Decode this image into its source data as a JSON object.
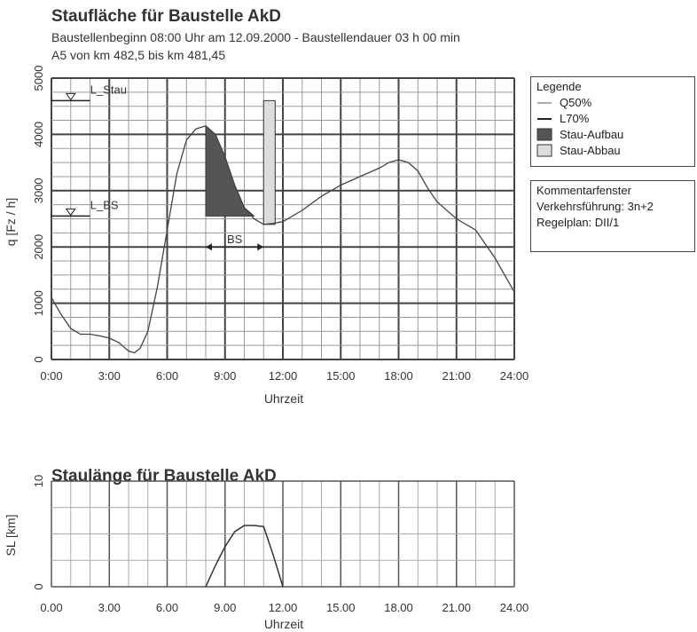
{
  "chart_data": [
    {
      "type": "line",
      "title": "Staufläche für Baustelle AkD",
      "subtitle1": "Baustellenbeginn 08:00 Uhr am 12.09.2000 - Baustellendauer 03 h  00 min",
      "subtitle2": "A5 von km 482,5 bis km 481,45",
      "xlabel": "Uhrzeit",
      "ylabel": "q [Fz / h]",
      "xlim": [
        0,
        24
      ],
      "ylim": [
        0,
        5000
      ],
      "x_ticks": [
        "0:00",
        "3:00",
        "6:00",
        "9:00",
        "12:00",
        "15:00",
        "18:00",
        "21:00",
        "24:00"
      ],
      "y_ticks": [
        "0",
        "1000",
        "2000",
        "3000",
        "4000",
        "5000"
      ],
      "grid": true,
      "series": [
        {
          "name": "Q50%",
          "x": [
            0,
            0.5,
            1,
            1.5,
            2,
            2.5,
            3,
            3.5,
            4,
            4.3,
            4.6,
            5,
            5.5,
            6,
            6.5,
            7,
            7.5,
            8,
            8.5,
            9,
            9.5,
            10,
            10.5,
            11,
            11.5,
            12,
            13,
            14,
            15,
            16,
            17,
            17.5,
            18,
            18.5,
            19,
            19.5,
            20,
            21,
            22,
            23,
            24
          ],
          "y": [
            1100,
            800,
            550,
            450,
            450,
            420,
            380,
            300,
            150,
            120,
            200,
            500,
            1300,
            2300,
            3300,
            3900,
            4100,
            4150,
            4000,
            3600,
            3100,
            2700,
            2500,
            2400,
            2420,
            2450,
            2650,
            2900,
            3100,
            3250,
            3400,
            3500,
            3550,
            3500,
            3350,
            3050,
            2800,
            2500,
            2300,
            1800,
            1200
          ]
        }
      ],
      "capacity_lines": [
        {
          "name": "L_Stau",
          "value": 4600
        },
        {
          "name": "L_BS",
          "value": 2550
        }
      ],
      "annotation": "BS",
      "legend": {
        "title": "Legende",
        "items": [
          "Q50%",
          "L70%",
          "Stau-Aufbau",
          "Stau-Abbau"
        ],
        "colors": [
          "#555555",
          "#222222",
          "#555555",
          "#dddddd"
        ]
      },
      "comment": {
        "title": "Kommentarfenster",
        "lines": [
          "Verkehrsführung: 3n+2",
          "Regelplan: DII/1"
        ]
      }
    },
    {
      "type": "line",
      "title": "Staulänge für Baustelle AkD",
      "xlabel": "Uhrzeit",
      "ylabel": "SL [km]",
      "xlim": [
        0,
        24
      ],
      "ylim": [
        0,
        10
      ],
      "x_ticks": [
        "0.00",
        "3.00",
        "6.00",
        "9.00",
        "12.00",
        "15.00",
        "18.00",
        "21.00",
        "24.00"
      ],
      "y_ticks": [
        "0",
        "10"
      ],
      "grid": true,
      "series": [
        {
          "x": [
            8,
            8.5,
            9,
            9.5,
            10,
            10.5,
            11,
            11.5,
            12
          ],
          "y": [
            0,
            2.0,
            3.8,
            5.2,
            5.8,
            5.8,
            5.7,
            3.0,
            0
          ]
        }
      ]
    }
  ]
}
